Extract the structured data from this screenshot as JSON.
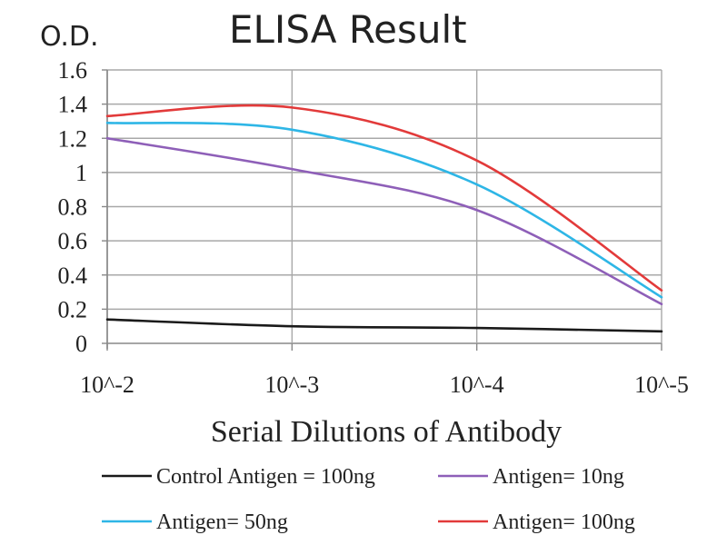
{
  "chart_data": {
    "type": "line",
    "title": "ELISA Result",
    "ylabel": "O.D.",
    "xlabel": "Serial Dilutions of Antibody",
    "x": [
      "10^-2",
      "10^-3",
      "10^-4",
      "10^-5"
    ],
    "x_scale": "log",
    "ylim": [
      0,
      1.6
    ],
    "yticks": [
      "0",
      "0.2",
      "0.4",
      "0.6",
      "0.8",
      "1",
      "1.2",
      "1.4",
      "1.6"
    ],
    "grid": true,
    "legend_position": "bottom",
    "series": [
      {
        "name": "Control Antigen = 100ng",
        "color": "#1a1a1a",
        "values": [
          0.14,
          0.1,
          0.09,
          0.07
        ]
      },
      {
        "name": "Antigen= 10ng",
        "color": "#8e5fb8",
        "values": [
          1.2,
          1.02,
          0.78,
          0.23
        ]
      },
      {
        "name": "Antigen= 50ng",
        "color": "#2eb6e6",
        "values": [
          1.29,
          1.25,
          0.93,
          0.27
        ]
      },
      {
        "name": "Antigen= 100ng",
        "color": "#e23a3a",
        "values": [
          1.33,
          1.38,
          1.07,
          0.31
        ]
      }
    ]
  }
}
